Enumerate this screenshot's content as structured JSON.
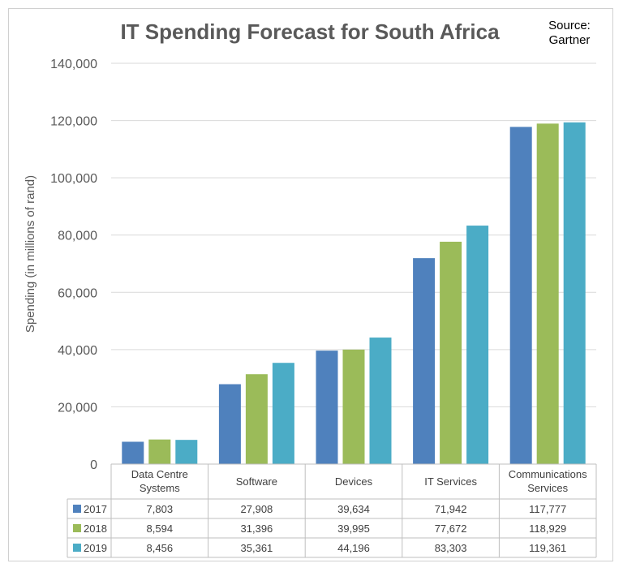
{
  "chart_data": {
    "type": "bar",
    "title": "IT Spending Forecast for South Africa",
    "source": "Source:\nGartner",
    "ylabel": "Spending (in millions of rand)",
    "xlabel": "",
    "ylim": [
      0,
      140000
    ],
    "yticks": [
      0,
      20000,
      40000,
      60000,
      80000,
      100000,
      120000,
      140000
    ],
    "ytick_labels": [
      "0",
      "20,000",
      "40,000",
      "60,000",
      "80,000",
      "100,000",
      "120,000",
      "140,000"
    ],
    "grid": true,
    "legend": "data-table",
    "categories": [
      "Data Centre Systems",
      "Software",
      "Devices",
      "IT Services",
      "Communications Services"
    ],
    "category_lines": [
      [
        "Data Centre",
        "Systems"
      ],
      [
        "Software"
      ],
      [
        "Devices"
      ],
      [
        "IT Services"
      ],
      [
        "Communications",
        "Services"
      ]
    ],
    "series": [
      {
        "name": "2017",
        "color": "#4f81bd",
        "values": [
          7803,
          27908,
          39634,
          71942,
          117777
        ],
        "labels": [
          "7,803",
          "27,908",
          "39,634",
          "71,942",
          "117,777"
        ]
      },
      {
        "name": "2018",
        "color": "#9bbb59",
        "values": [
          8594,
          31396,
          39995,
          77672,
          118929
        ],
        "labels": [
          "8,594",
          "31,396",
          "39,995",
          "77,672",
          "118,929"
        ]
      },
      {
        "name": "2019",
        "color": "#4bacc6",
        "values": [
          8456,
          35361,
          44196,
          83303,
          119361
        ],
        "labels": [
          "8,456",
          "35,361",
          "44,196",
          "83,303",
          "119,361"
        ]
      }
    ]
  }
}
